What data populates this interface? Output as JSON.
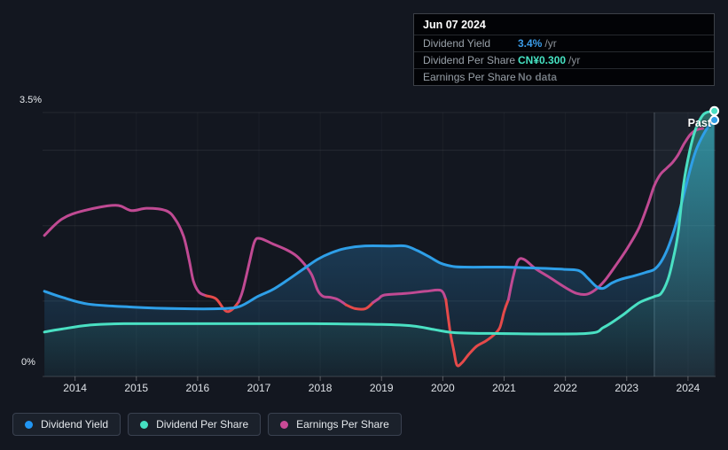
{
  "tooltip": {
    "date": "Jun 07 2024",
    "rows": [
      {
        "label": "Dividend Yield",
        "value": "3.4%",
        "suffix": "/yr",
        "value_color": "#3b9ce8"
      },
      {
        "label": "Dividend Per Share",
        "value": "CN¥0.300",
        "suffix": "/yr",
        "value_color": "#46e3c3"
      },
      {
        "label": "Earnings Per Share",
        "value": "No data",
        "suffix": "",
        "value_color": "#70777e"
      }
    ]
  },
  "legend": {
    "items": [
      {
        "label": "Dividend Yield",
        "color": "#2196f3"
      },
      {
        "label": "Dividend Per Share",
        "color": "#45e0c2"
      },
      {
        "label": "Earnings Per Share",
        "color": "#c94a96"
      }
    ]
  },
  "chart_data": {
    "type": "line",
    "title": "Dividend history chart",
    "x_axis": {
      "range": [
        2013.47,
        2024.45
      ],
      "ticks": [
        2014,
        2015,
        2016,
        2017,
        2018,
        2019,
        2020,
        2021,
        2022,
        2023,
        2024
      ]
    },
    "y_axis": {
      "range": [
        0,
        3.5
      ],
      "top_label": "3.5%",
      "bottom_label": "0%",
      "gridlines_pct": [
        1,
        2,
        3,
        3.5
      ]
    },
    "past_divider_x": 2023.45,
    "past_label": "Past",
    "series": [
      {
        "name": "Dividend Yield",
        "color": "#2e9fe8",
        "area": true,
        "marker_end": true,
        "points": [
          [
            2013.5,
            1.13
          ],
          [
            2013.79,
            1.05
          ],
          [
            2014.22,
            0.96
          ],
          [
            2014.95,
            0.92
          ],
          [
            2015.67,
            0.9
          ],
          [
            2016.4,
            0.9
          ],
          [
            2016.69,
            0.93
          ],
          [
            2016.98,
            1.06
          ],
          [
            2017.22,
            1.15
          ],
          [
            2017.45,
            1.27
          ],
          [
            2017.7,
            1.41
          ],
          [
            2017.95,
            1.55
          ],
          [
            2018.18,
            1.64
          ],
          [
            2018.42,
            1.7
          ],
          [
            2018.71,
            1.73
          ],
          [
            2019.15,
            1.73
          ],
          [
            2019.39,
            1.73
          ],
          [
            2019.58,
            1.67
          ],
          [
            2019.77,
            1.59
          ],
          [
            2019.97,
            1.5
          ],
          [
            2020.16,
            1.46
          ],
          [
            2020.35,
            1.45
          ],
          [
            2021.0,
            1.45
          ],
          [
            2021.42,
            1.44
          ],
          [
            2022.0,
            1.42
          ],
          [
            2022.23,
            1.4
          ],
          [
            2022.37,
            1.3
          ],
          [
            2022.51,
            1.19
          ],
          [
            2022.62,
            1.17
          ],
          [
            2022.76,
            1.24
          ],
          [
            2022.91,
            1.29
          ],
          [
            2023.1,
            1.33
          ],
          [
            2023.31,
            1.38
          ],
          [
            2023.45,
            1.42
          ],
          [
            2023.56,
            1.52
          ],
          [
            2023.67,
            1.7
          ],
          [
            2023.77,
            1.93
          ],
          [
            2023.86,
            2.19
          ],
          [
            2023.95,
            2.47
          ],
          [
            2024.04,
            2.76
          ],
          [
            2024.13,
            3.0
          ],
          [
            2024.22,
            3.16
          ],
          [
            2024.32,
            3.3
          ],
          [
            2024.43,
            3.4
          ]
        ]
      },
      {
        "name": "Dividend Per Share",
        "color": "#4ae0c3",
        "area": true,
        "marker_end": true,
        "points": [
          [
            2013.5,
            0.59
          ],
          [
            2013.79,
            0.63
          ],
          [
            2014.22,
            0.68
          ],
          [
            2014.8,
            0.7
          ],
          [
            2016.4,
            0.7
          ],
          [
            2017.84,
            0.7
          ],
          [
            2019.0,
            0.69
          ],
          [
            2019.51,
            0.67
          ],
          [
            2019.87,
            0.62
          ],
          [
            2020.21,
            0.58
          ],
          [
            2020.89,
            0.57
          ],
          [
            2022.33,
            0.57
          ],
          [
            2022.62,
            0.65
          ],
          [
            2022.91,
            0.8
          ],
          [
            2023.1,
            0.92
          ],
          [
            2023.23,
            0.99
          ],
          [
            2023.45,
            1.06
          ],
          [
            2023.56,
            1.1
          ],
          [
            2023.67,
            1.28
          ],
          [
            2023.75,
            1.53
          ],
          [
            2023.84,
            1.91
          ],
          [
            2023.93,
            2.56
          ],
          [
            2024.03,
            3.0
          ],
          [
            2024.12,
            3.27
          ],
          [
            2024.22,
            3.44
          ],
          [
            2024.3,
            3.5
          ],
          [
            2024.43,
            3.52
          ]
        ]
      },
      {
        "name": "Earnings Per Share",
        "color": "#c04a93",
        "area": false,
        "marker_end": false,
        "red_color": "#e54a4a",
        "red_segments": [
          [
            2016.2,
            2016.64
          ],
          [
            2018.41,
            2018.85
          ],
          [
            2020.03,
            2021.08
          ]
        ],
        "points": [
          [
            2013.5,
            1.87
          ],
          [
            2013.79,
            2.09
          ],
          [
            2014.15,
            2.2
          ],
          [
            2014.66,
            2.27
          ],
          [
            2014.92,
            2.2
          ],
          [
            2015.17,
            2.23
          ],
          [
            2015.48,
            2.2
          ],
          [
            2015.63,
            2.09
          ],
          [
            2015.77,
            1.86
          ],
          [
            2015.86,
            1.55
          ],
          [
            2015.93,
            1.27
          ],
          [
            2016.02,
            1.12
          ],
          [
            2016.14,
            1.07
          ],
          [
            2016.3,
            1.03
          ],
          [
            2016.43,
            0.89
          ],
          [
            2016.5,
            0.86
          ],
          [
            2016.58,
            0.9
          ],
          [
            2016.67,
            0.99
          ],
          [
            2016.74,
            1.15
          ],
          [
            2016.85,
            1.53
          ],
          [
            2016.93,
            1.79
          ],
          [
            2017.02,
            1.83
          ],
          [
            2017.22,
            1.76
          ],
          [
            2017.45,
            1.68
          ],
          [
            2017.61,
            1.6
          ],
          [
            2017.74,
            1.49
          ],
          [
            2017.86,
            1.35
          ],
          [
            2017.96,
            1.14
          ],
          [
            2018.05,
            1.06
          ],
          [
            2018.16,
            1.05
          ],
          [
            2018.29,
            1.02
          ],
          [
            2018.42,
            0.95
          ],
          [
            2018.57,
            0.9
          ],
          [
            2018.74,
            0.9
          ],
          [
            2018.86,
            0.98
          ],
          [
            2018.95,
            1.03
          ],
          [
            2019.05,
            1.08
          ],
          [
            2019.39,
            1.1
          ],
          [
            2019.73,
            1.13
          ],
          [
            2019.97,
            1.14
          ],
          [
            2020.05,
            1.02
          ],
          [
            2020.12,
            0.59
          ],
          [
            2020.18,
            0.34
          ],
          [
            2020.23,
            0.15
          ],
          [
            2020.31,
            0.18
          ],
          [
            2020.42,
            0.29
          ],
          [
            2020.55,
            0.4
          ],
          [
            2020.7,
            0.47
          ],
          [
            2020.83,
            0.55
          ],
          [
            2020.93,
            0.65
          ],
          [
            2021.0,
            0.86
          ],
          [
            2021.07,
            1.02
          ],
          [
            2021.15,
            1.33
          ],
          [
            2021.23,
            1.54
          ],
          [
            2021.33,
            1.55
          ],
          [
            2021.51,
            1.43
          ],
          [
            2021.71,
            1.33
          ],
          [
            2021.9,
            1.23
          ],
          [
            2022.06,
            1.15
          ],
          [
            2022.19,
            1.1
          ],
          [
            2022.35,
            1.09
          ],
          [
            2022.49,
            1.15
          ],
          [
            2022.64,
            1.27
          ],
          [
            2022.82,
            1.47
          ],
          [
            2023.01,
            1.7
          ],
          [
            2023.2,
            1.97
          ],
          [
            2023.35,
            2.29
          ],
          [
            2023.45,
            2.53
          ],
          [
            2023.55,
            2.68
          ],
          [
            2023.65,
            2.76
          ],
          [
            2023.75,
            2.84
          ],
          [
            2023.84,
            2.94
          ],
          [
            2023.94,
            3.09
          ],
          [
            2024.04,
            3.21
          ],
          [
            2024.14,
            3.27
          ],
          [
            2024.24,
            3.29
          ]
        ]
      }
    ]
  }
}
